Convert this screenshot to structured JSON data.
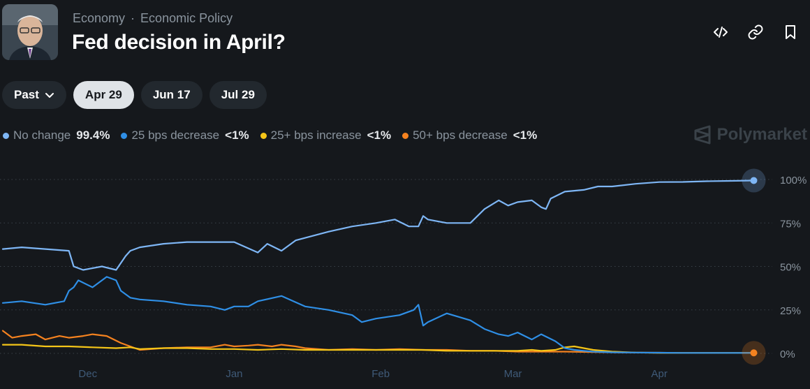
{
  "header": {
    "breadcrumb": [
      "Economy",
      "Economic Policy"
    ],
    "breadcrumb_separator": "·",
    "title": "Fed decision in April?"
  },
  "actions": [
    {
      "name": "embed",
      "icon": "code-icon"
    },
    {
      "name": "copy-link",
      "icon": "link-icon"
    },
    {
      "name": "bookmark",
      "icon": "bookmark-icon"
    }
  ],
  "tabs": [
    {
      "label": "Past",
      "icon": "chevron-down-icon",
      "active": false
    },
    {
      "label": "Apr 29",
      "active": true
    },
    {
      "label": "Jun 17",
      "active": false
    },
    {
      "label": "Jul 29",
      "active": false
    }
  ],
  "legend": [
    {
      "name": "No change",
      "value": "99.4%",
      "color": "#7eb6f5"
    },
    {
      "name": "25 bps decrease",
      "value": "<1%",
      "color": "#2f8fe6"
    },
    {
      "name": "25+ bps increase",
      "value": "<1%",
      "color": "#f5c518"
    },
    {
      "name": "50+ bps decrease",
      "value": "<1%",
      "color": "#f5821f"
    }
  ],
  "watermark": "Polymarket",
  "chart_data": {
    "type": "line",
    "y_ticks": [
      "100%",
      "75%",
      "50%",
      "25%",
      "0%"
    ],
    "ylim": [
      0,
      100
    ],
    "x_ticks": [
      "Dec",
      "Jan",
      "Feb",
      "Mar",
      "Apr"
    ],
    "x_tick_positions": [
      19,
      50,
      81,
      109,
      140
    ],
    "xlim": [
      1,
      162
    ],
    "grid": "horizontal dotted",
    "series": [
      {
        "name": "No change",
        "color": "#7eb6f5",
        "x": [
          1,
          5,
          10,
          15,
          16,
          18,
          22,
          25,
          27,
          28,
          30,
          35,
          40,
          45,
          50,
          55,
          57,
          60,
          63,
          70,
          75,
          80,
          84,
          87,
          89,
          90,
          91,
          95,
          100,
          103,
          106,
          108,
          110,
          113,
          115,
          116,
          117,
          120,
          124,
          127,
          130,
          135,
          140,
          145,
          150,
          155,
          160
        ],
        "y": [
          60,
          61,
          60,
          59,
          50,
          48,
          50,
          48,
          56,
          59,
          61,
          63,
          64,
          64,
          64,
          58,
          63,
          59,
          65,
          70,
          73,
          75,
          77,
          73,
          73,
          79,
          77,
          75,
          75,
          83,
          88,
          85,
          87,
          88,
          84,
          83,
          89,
          93,
          94,
          96,
          96,
          97.5,
          98.5,
          98.6,
          99,
          99.2,
          99.4
        ]
      },
      {
        "name": "25 bps decrease",
        "color": "#2f8fe6",
        "x": [
          1,
          5,
          10,
          14,
          15,
          16,
          17,
          20,
          23,
          25,
          26,
          28,
          30,
          35,
          40,
          45,
          48,
          50,
          53,
          55,
          60,
          65,
          70,
          75,
          77,
          80,
          85,
          88,
          89,
          90,
          91,
          95,
          100,
          103,
          106,
          108,
          110,
          113,
          115,
          118,
          120,
          122,
          124,
          126,
          128,
          130,
          135,
          140,
          145,
          150,
          155,
          160
        ],
        "y": [
          29,
          30,
          28,
          30,
          36,
          38,
          42,
          38,
          44,
          42,
          36,
          32,
          31,
          30,
          28,
          27,
          25,
          27,
          27,
          30,
          33,
          27,
          25,
          22,
          18,
          20,
          22,
          25,
          28,
          16,
          18,
          23,
          19,
          14,
          11,
          10,
          12,
          8,
          11,
          7,
          3,
          2,
          1.5,
          1,
          0.8,
          0.6,
          0.5,
          0.4,
          0.3,
          0.3,
          0.3,
          0.3
        ]
      },
      {
        "name": "25+ bps increase",
        "color": "#f5c518",
        "x": [
          1,
          5,
          10,
          15,
          20,
          25,
          28,
          30,
          35,
          40,
          45,
          50,
          55,
          60,
          65,
          70,
          75,
          80,
          85,
          90,
          95,
          100,
          105,
          110,
          113,
          115,
          118,
          120,
          122,
          124,
          126,
          130,
          135,
          140,
          145,
          150,
          155,
          160
        ],
        "y": [
          5,
          5,
          4,
          4,
          3.5,
          3,
          3.5,
          2.5,
          3,
          3,
          2.5,
          2.5,
          2,
          2.5,
          2,
          2,
          2,
          2,
          2,
          2,
          1.5,
          1.5,
          1.5,
          1.5,
          2,
          1.5,
          2,
          3.5,
          4,
          3,
          2,
          1,
          0.5,
          0.3,
          0.3,
          0.3,
          0.3,
          0.3
        ]
      },
      {
        "name": "50+ bps decrease",
        "color": "#f5821f",
        "x": [
          1,
          3,
          5,
          8,
          10,
          13,
          15,
          18,
          20,
          23,
          26,
          28,
          30,
          35,
          40,
          45,
          48,
          50,
          53,
          55,
          58,
          60,
          63,
          65,
          70,
          75,
          80,
          85,
          90,
          95,
          100,
          105,
          110,
          115,
          120,
          125,
          130,
          135,
          140,
          145,
          150,
          155,
          160
        ],
        "y": [
          13,
          9,
          10,
          11,
          8,
          10,
          9,
          10,
          11,
          10,
          6,
          4,
          2,
          3,
          3.5,
          3.5,
          5,
          4,
          4.5,
          5,
          4,
          5,
          4,
          3,
          2,
          2.5,
          2,
          2.5,
          2,
          2,
          1.5,
          1.5,
          1,
          1,
          1,
          0.8,
          0.6,
          0.5,
          0.4,
          0.3,
          0.3,
          0.3,
          0.3
        ]
      }
    ],
    "end_markers": [
      "No change",
      "50+ bps decrease"
    ]
  }
}
